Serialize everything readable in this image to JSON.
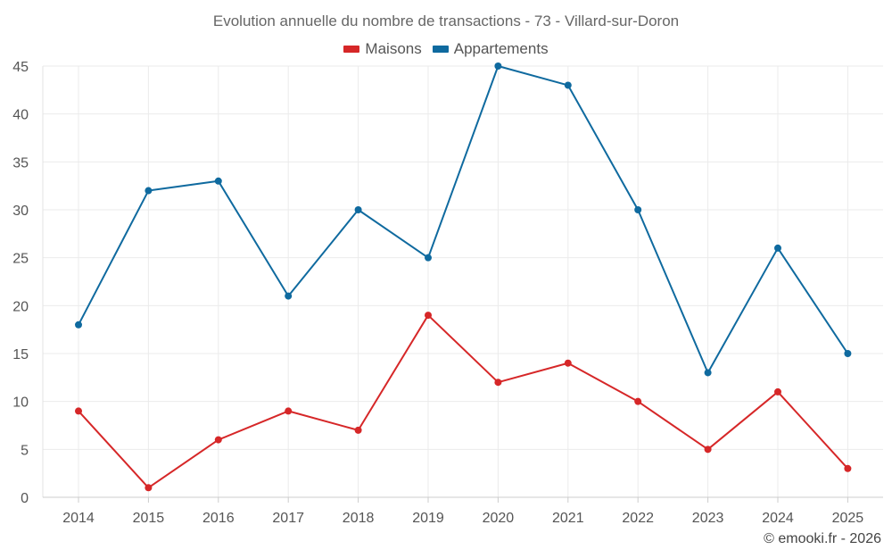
{
  "chart_data": {
    "type": "line",
    "title": "Evolution annuelle du nombre de transactions - 73 - Villard-sur-Doron",
    "categories": [
      "2014",
      "2015",
      "2016",
      "2017",
      "2018",
      "2019",
      "2020",
      "2021",
      "2022",
      "2023",
      "2024",
      "2025"
    ],
    "series": [
      {
        "name": "Maisons",
        "color": "#d62728",
        "values": [
          9,
          1,
          6,
          9,
          7,
          19,
          12,
          14,
          10,
          5,
          11,
          3
        ]
      },
      {
        "name": "Appartements",
        "color": "#0f6a9f",
        "values": [
          18,
          32,
          33,
          21,
          30,
          25,
          45,
          43,
          30,
          13,
          26,
          15
        ]
      }
    ],
    "ylim": [
      0,
      45
    ],
    "yticks": [
      "0",
      "5",
      "10",
      "15",
      "20",
      "25",
      "30",
      "35",
      "40",
      "45"
    ],
    "grid": true,
    "legend_position": "top-center",
    "xlabel": "",
    "ylabel": ""
  },
  "credit": "© emooki.fr - 2026"
}
